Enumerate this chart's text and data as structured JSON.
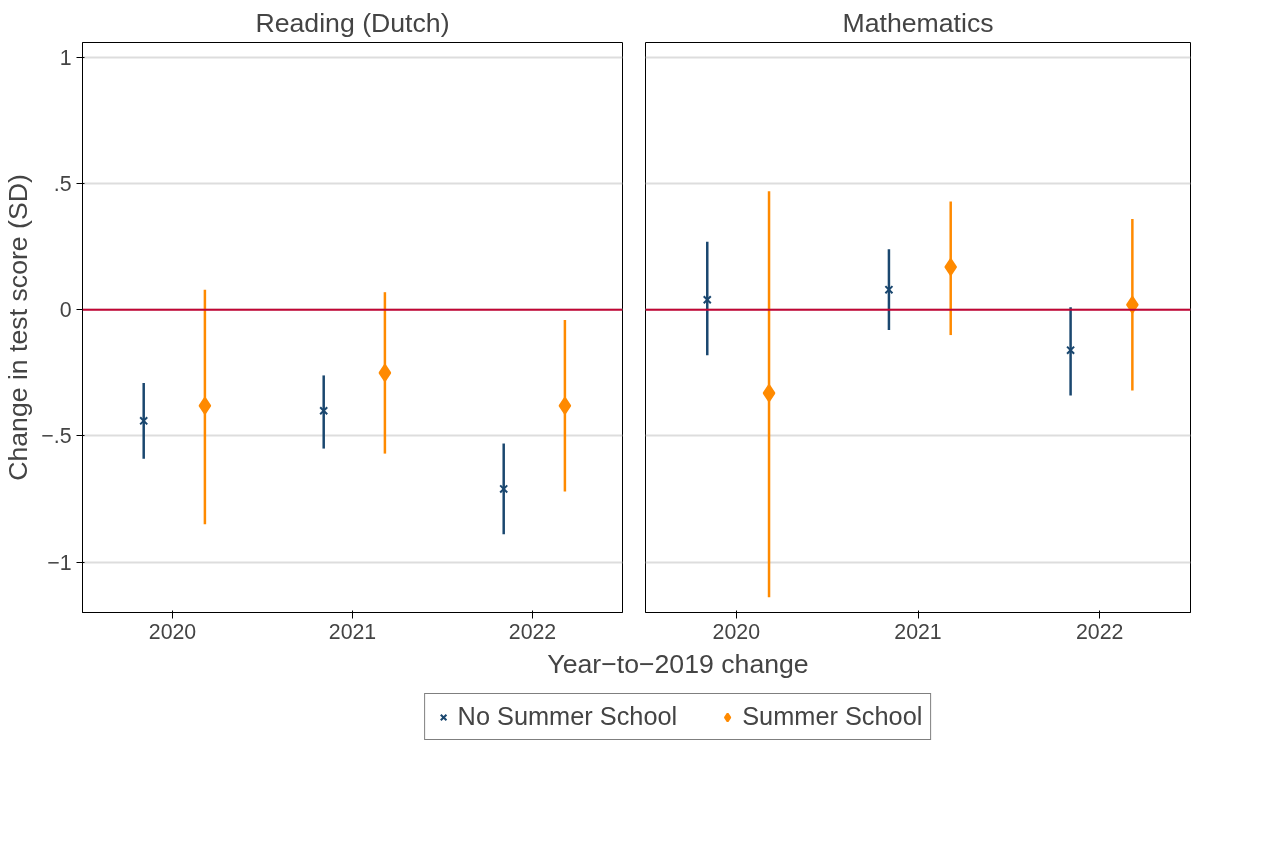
{
  "chart_data": [
    {
      "type": "scatter",
      "title": "Reading (Dutch)",
      "xlabel": "Year−to−2019 change",
      "ylabel": "Change in test score (SD)",
      "legend": "bottom",
      "grid": "y",
      "xlim": [
        2019.5,
        2022.5
      ],
      "xticks": [
        2020,
        2021,
        2022
      ],
      "ylim": [
        -1.2,
        1.06
      ],
      "yticks": [
        1,
        {
          "value": 0.5,
          "label": ".5"
        },
        0,
        {
          "value": -0.5,
          "label": "−.5"
        },
        {
          "value": -1,
          "label": "−1"
        }
      ],
      "ref_lines": [
        {
          "axis": "y",
          "value": 0,
          "color": "#c10534"
        }
      ],
      "series": [
        {
          "name": "No Summer School",
          "color": "#1a476f",
          "marker": "cross",
          "x": [
            2019.84,
            2020.84,
            2021.84
          ],
          "values": [
            -0.44,
            -0.4,
            -0.71
          ],
          "errors": [
            [
              -0.59,
              -0.29
            ],
            [
              -0.55,
              -0.26
            ],
            [
              -0.89,
              -0.53
            ]
          ]
        },
        {
          "name": "Summer School",
          "color": "#ff8a00",
          "marker": "diamond",
          "x": [
            2020.18,
            2021.18,
            2022.18
          ],
          "values": [
            -0.38,
            -0.25,
            -0.38
          ],
          "errors": [
            [
              -0.85,
              0.08
            ],
            [
              -0.57,
              0.07
            ],
            [
              -0.72,
              -0.04
            ]
          ]
        }
      ]
    },
    {
      "type": "scatter",
      "title": "Mathematics",
      "grid": "y",
      "tick_labels": "x",
      "xlim": [
        2019.5,
        2022.5
      ],
      "xticks": [
        2020,
        2021,
        2022
      ],
      "ylim": [
        -1.2,
        1.06
      ],
      "yticks": [
        1,
        0.5,
        0,
        -0.5,
        -1
      ],
      "ref_lines": [
        {
          "axis": "y",
          "value": 0,
          "color": "#c10534"
        }
      ],
      "series": [
        {
          "color": "#1a476f",
          "marker": "cross",
          "x": [
            2019.84,
            2020.84,
            2021.84
          ],
          "values": [
            0.04,
            0.08,
            -0.16
          ],
          "errors": [
            [
              -0.18,
              0.27
            ],
            [
              -0.08,
              0.24
            ],
            [
              -0.34,
              0.01
            ]
          ]
        },
        {
          "color": "#ff8a00",
          "marker": "diamond",
          "x": [
            2020.18,
            2021.18,
            2022.18
          ],
          "values": [
            -0.33,
            0.17,
            0.02
          ],
          "errors": [
            [
              -1.14,
              0.47
            ],
            [
              -0.1,
              0.43
            ],
            [
              -0.32,
              0.36
            ]
          ]
        }
      ]
    }
  ]
}
